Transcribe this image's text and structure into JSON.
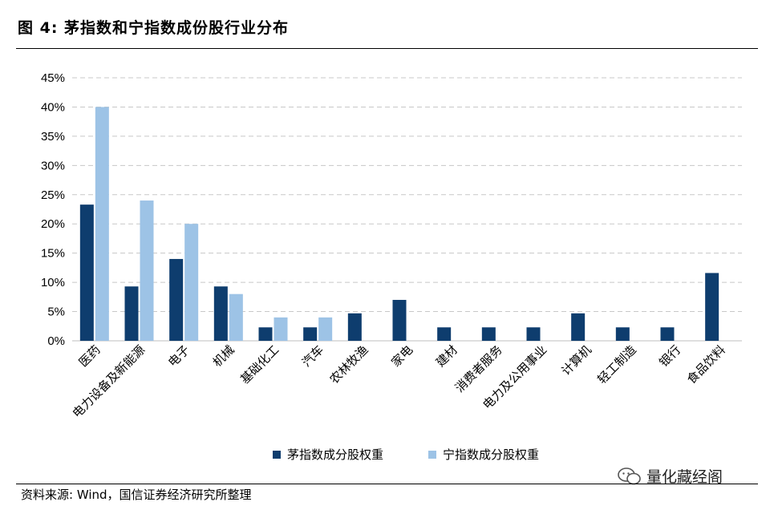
{
  "figure": {
    "title": "图 4:  茅指数和宁指数成份股行业分布",
    "source": "资料来源: Wind，国信证券经济研究所整理",
    "watermark": "量化藏经阁"
  },
  "chart_data": {
    "type": "bar",
    "title": "",
    "xlabel": "",
    "ylabel": "",
    "ylim": [
      0,
      45
    ],
    "ytick_step": 5,
    "ytick_suffix": "%",
    "grid": true,
    "legend_position": "bottom-center",
    "categories": [
      "医药",
      "电力设备及新能源",
      "电子",
      "机械",
      "基础化工",
      "汽车",
      "农林牧渔",
      "家电",
      "建材",
      "消费者服务",
      "电力及公用事业",
      "计算机",
      "轻工制造",
      "银行",
      "食品饮料"
    ],
    "series": [
      {
        "name": "茅指数成分股权重",
        "color": "#0e3d6e",
        "values": [
          23.3,
          9.3,
          14.0,
          9.3,
          2.3,
          2.3,
          4.7,
          7.0,
          2.3,
          2.3,
          2.3,
          4.7,
          2.3,
          2.3,
          11.6
        ]
      },
      {
        "name": "宁指数成分股权重",
        "color": "#9dc3e6",
        "values": [
          40.0,
          24.0,
          20.0,
          8.0,
          4.0,
          4.0,
          0,
          0,
          0,
          0,
          0,
          0,
          0,
          0,
          0
        ]
      }
    ]
  }
}
